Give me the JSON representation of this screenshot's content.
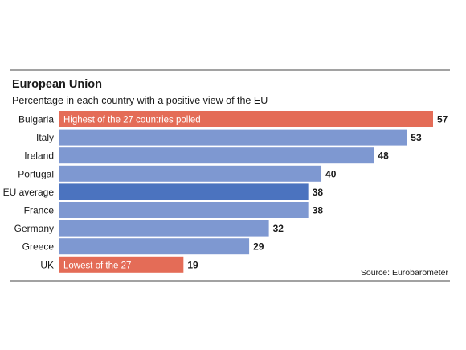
{
  "chart_data": {
    "type": "bar",
    "orientation": "horizontal",
    "title": "European Union",
    "subtitle": "Percentage in each country with a positive view of the EU",
    "source": "Source: Eurobarometer",
    "categories": [
      "Bulgaria",
      "Italy",
      "Ireland",
      "Portugal",
      "EU average",
      "France",
      "Germany",
      "Greece",
      "UK"
    ],
    "values": [
      57,
      53,
      48,
      40,
      38,
      38,
      32,
      29,
      19
    ],
    "annotations": [
      {
        "category": "Bulgaria",
        "text": "Highest of the 27 countries polled"
      },
      {
        "category": "UK",
        "text": "Lowest of the 27"
      }
    ],
    "colors": {
      "default": "#7e98d1",
      "average": "#4b73bf",
      "highlight": "#e46c57",
      "rule": "#444444",
      "text": "#1a1a1a",
      "bar_label": "#ffffff"
    },
    "bar_colors": [
      "highlight",
      "default",
      "default",
      "default",
      "average",
      "default",
      "default",
      "default",
      "highlight"
    ],
    "xlim": [
      0,
      57
    ],
    "grid": false,
    "legend": "none"
  }
}
